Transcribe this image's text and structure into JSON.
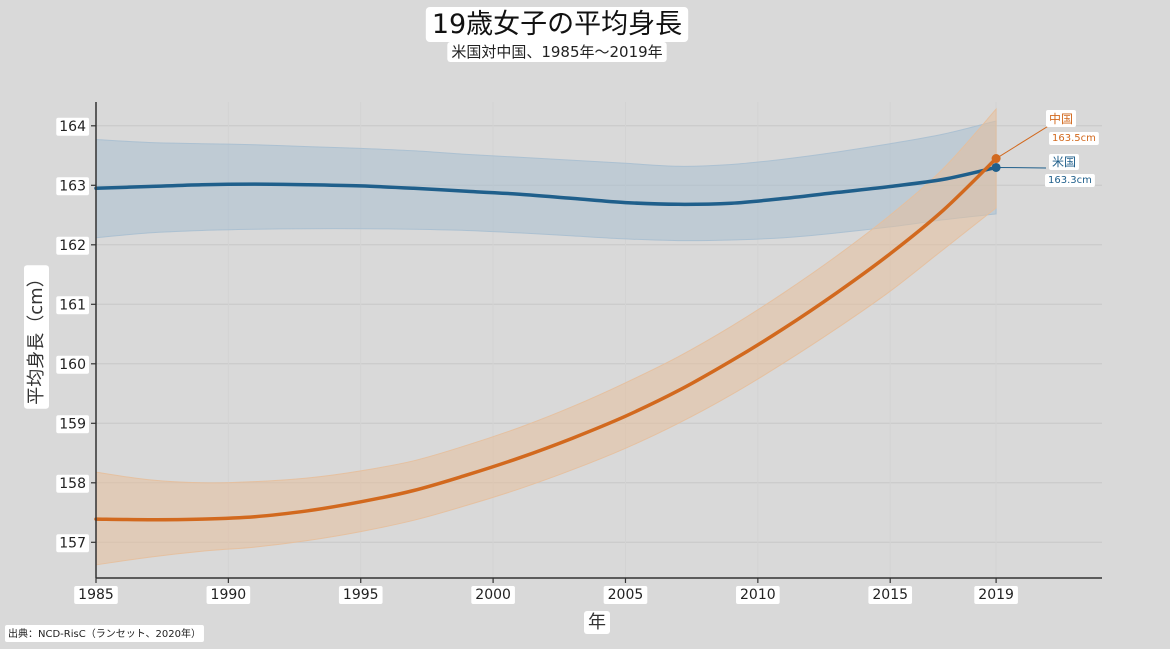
{
  "chart_data": {
    "type": "line",
    "title": "19歳女子の平均身長",
    "subtitle": "米国対中国、1985年～2019年",
    "xlabel": "年",
    "ylabel": "平均身長（cm）",
    "xlim": [
      1985,
      2023
    ],
    "ylim": [
      156.4,
      164.4
    ],
    "x_ticks": [
      1985,
      1990,
      1995,
      2000,
      2005,
      2010,
      2015,
      2019
    ],
    "y_ticks": [
      157,
      158,
      159,
      160,
      161,
      162,
      163,
      164
    ],
    "grid": true,
    "source": "出典：NCD-RisC（ランセット、2020年）",
    "series": [
      {
        "name": "米国",
        "color": "#1f5f8b",
        "band_color": "#a9bfd0",
        "end_label": "163.3cm",
        "x": [
          1985,
          1987,
          1989,
          1991,
          1993,
          1995,
          1997,
          1999,
          2001,
          2003,
          2005,
          2007,
          2009,
          2011,
          2013,
          2015,
          2017,
          2019
        ],
        "values": [
          162.95,
          162.98,
          163.01,
          163.02,
          163.01,
          162.99,
          162.95,
          162.9,
          162.85,
          162.78,
          162.71,
          162.68,
          162.7,
          162.78,
          162.88,
          162.98,
          163.1,
          163.3
        ],
        "lower": [
          162.12,
          162.2,
          162.24,
          162.26,
          162.27,
          162.27,
          162.26,
          162.24,
          162.2,
          162.15,
          162.1,
          162.07,
          162.08,
          162.12,
          162.2,
          162.3,
          162.42,
          162.52
        ],
        "upper": [
          163.77,
          163.72,
          163.7,
          163.68,
          163.65,
          163.62,
          163.58,
          163.52,
          163.47,
          163.42,
          163.37,
          163.32,
          163.35,
          163.44,
          163.56,
          163.7,
          163.86,
          164.08
        ]
      },
      {
        "name": "中国",
        "color": "#d2691e",
        "band_color": "#e6bf9c",
        "end_label": "163.5cm",
        "x": [
          1985,
          1987,
          1989,
          1991,
          1993,
          1995,
          1997,
          1999,
          2001,
          2003,
          2005,
          2007,
          2009,
          2011,
          2013,
          2015,
          2017,
          2019
        ],
        "values": [
          157.39,
          157.38,
          157.39,
          157.43,
          157.53,
          157.68,
          157.87,
          158.13,
          158.42,
          158.75,
          159.12,
          159.55,
          160.05,
          160.6,
          161.2,
          161.85,
          162.58,
          163.45
        ],
        "lower": [
          156.62,
          156.75,
          156.85,
          156.92,
          157.03,
          157.18,
          157.37,
          157.62,
          157.9,
          158.22,
          158.58,
          159.0,
          159.48,
          160.02,
          160.6,
          161.22,
          161.92,
          162.62
        ],
        "upper": [
          158.18,
          158.05,
          158.0,
          158.02,
          158.08,
          158.2,
          158.37,
          158.63,
          158.93,
          159.28,
          159.68,
          160.12,
          160.63,
          161.2,
          161.82,
          162.5,
          163.28,
          164.28
        ]
      }
    ]
  }
}
